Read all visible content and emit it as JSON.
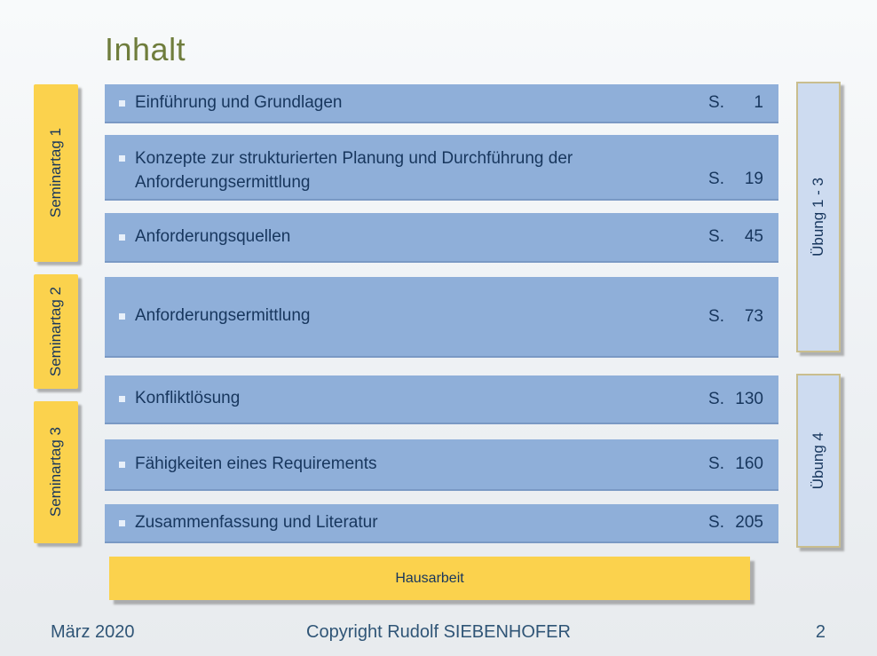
{
  "slide": {
    "title": "Inhalt",
    "footer": {
      "date": "März 2020",
      "copyright": "Copyright Rudolf SIEBENHOFER",
      "page_number": "2"
    }
  },
  "toc": {
    "items": [
      {
        "title": "Einführung und Grundlagen",
        "page_label": "S.",
        "page": "1"
      },
      {
        "title": "Konzepte zur strukturierten Planung und Durchführung der Anforderungsermittlung",
        "page_label": "S.",
        "page": "19"
      },
      {
        "title": "Anforderungsquellen",
        "page_label": "S.",
        "page": "45"
      },
      {
        "title": "Anforderungsermittlung",
        "page_label": "S.",
        "page": "73"
      },
      {
        "title": "Konfliktlösung",
        "page_label": "S.",
        "page": "130"
      },
      {
        "title": "Fähigkeiten eines Requirements",
        "page_label": "S.",
        "page": "160"
      },
      {
        "title": "Zusammenfassung und Literatur",
        "page_label": "S.",
        "page": "205"
      }
    ],
    "hausarbeit_label": "Hausarbeit"
  },
  "sidebars": {
    "left": [
      {
        "label": "Seminartag 1"
      },
      {
        "label": "Seminartag 2"
      },
      {
        "label": "Seminartag 3"
      }
    ],
    "right": [
      {
        "label": "Übung 1 - 3"
      },
      {
        "label": "Übung 4"
      }
    ]
  },
  "colors": {
    "bar_blue": "#8FAFD9",
    "bar_edge": "#7A99C4",
    "bar_text": "#17365D",
    "bullet": "#E8F0FA",
    "seminar_yellow": "#FBD24D",
    "uebung_blue": "#CDDBF0",
    "uebung_border": "#C9BE8E",
    "title_green": "#6F7D3C",
    "footer_text": "#2F5576",
    "background_top": "#F8FAFB",
    "background_bottom": "#E8EBEE"
  }
}
